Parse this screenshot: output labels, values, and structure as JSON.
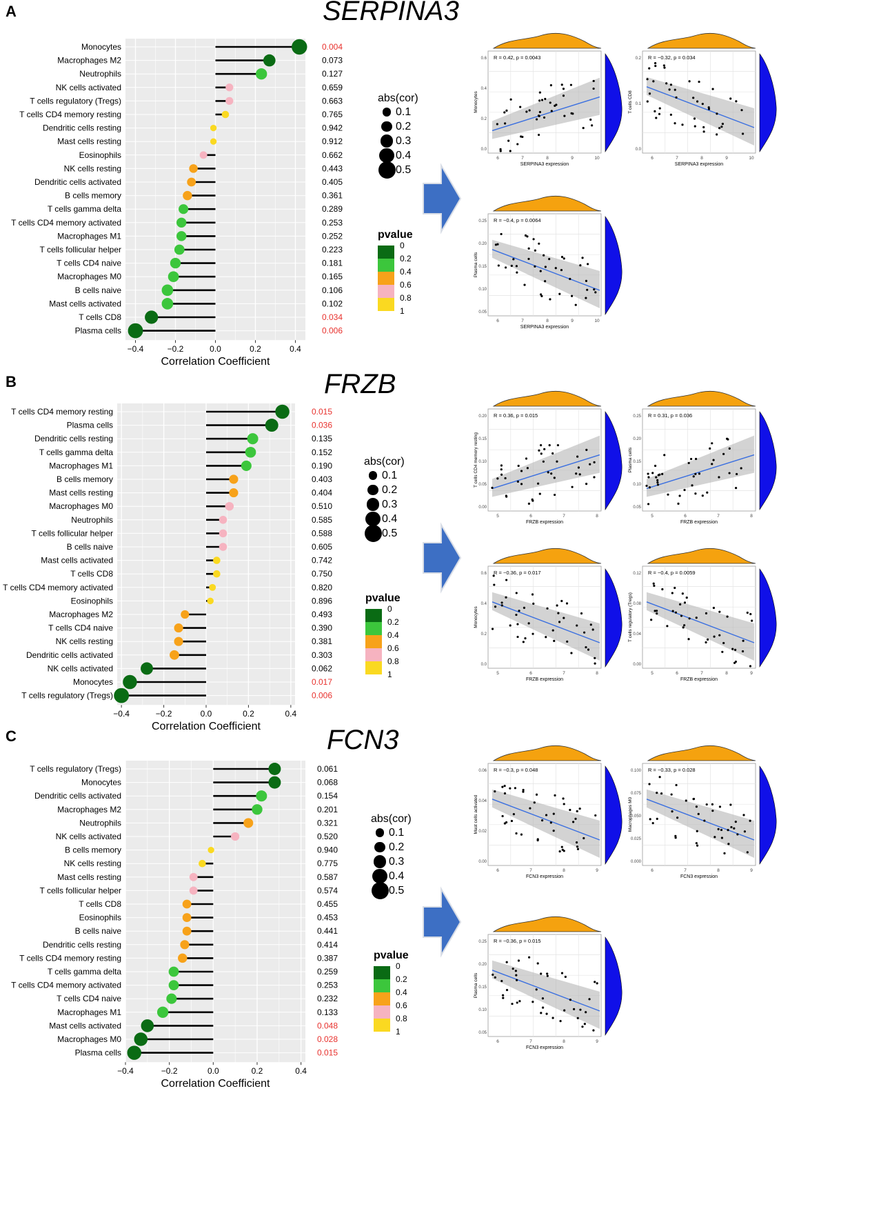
{
  "colors": {
    "p0": "#0a6b14",
    "p02": "#3cc63c",
    "p04": "#f7a21a",
    "p06": "#f6b3c0",
    "p08": "#fad921",
    "sig_red": "#e8312d",
    "density_orange": "#f5a20f",
    "density_blue": "#1010e8",
    "arrow_blue": "#3d6fc4",
    "panel_bg": "#ebebeb",
    "fit_line": "#3a6fe0"
  },
  "legend": {
    "size_title": "abs(cor)",
    "size_labels": [
      "0.1",
      "0.2",
      "0.3",
      "0.4",
      "0.5"
    ],
    "pvalue_title": "pvalue",
    "pvalue_labels": [
      "0",
      "0.2",
      "0.4",
      "0.6",
      "0.8",
      "1"
    ]
  },
  "panels": [
    {
      "letter": "A",
      "gene": "SERPINA3",
      "chart_data": {
        "type": "scatter",
        "title": "SERPINA3",
        "xlabel": "Correlation Coefficient",
        "xlim": [
          -0.45,
          0.45
        ],
        "x_ticks": [
          -0.4,
          -0.2,
          0.0,
          0.2,
          0.4
        ],
        "x_tick_labels": [
          "−0.4",
          "−0.2",
          "0.0",
          "0.2",
          "0.4"
        ],
        "rows": [
          {
            "cell": "Monocytes",
            "cor": 0.42,
            "pvalue": "0.004",
            "sig": true
          },
          {
            "cell": "Macrophages M2",
            "cor": 0.27,
            "pvalue": "0.073",
            "sig": false
          },
          {
            "cell": "Neutrophils",
            "cor": 0.23,
            "pvalue": "0.127",
            "sig": false
          },
          {
            "cell": "NK cells activated",
            "cor": 0.07,
            "pvalue": "0.659",
            "sig": false
          },
          {
            "cell": "T cells regulatory (Tregs)",
            "cor": 0.07,
            "pvalue": "0.663",
            "sig": false
          },
          {
            "cell": "T cells CD4 memory resting",
            "cor": 0.05,
            "pvalue": "0.765",
            "sig": false
          },
          {
            "cell": "Dendritic cells resting",
            "cor": -0.01,
            "pvalue": "0.942",
            "sig": false
          },
          {
            "cell": "Mast cells resting",
            "cor": -0.01,
            "pvalue": "0.912",
            "sig": false
          },
          {
            "cell": "Eosinophils",
            "cor": -0.06,
            "pvalue": "0.662",
            "sig": false
          },
          {
            "cell": "NK cells resting",
            "cor": -0.11,
            "pvalue": "0.443",
            "sig": false
          },
          {
            "cell": "Dendritic cells activated",
            "cor": -0.12,
            "pvalue": "0.405",
            "sig": false
          },
          {
            "cell": "B cells memory",
            "cor": -0.14,
            "pvalue": "0.361",
            "sig": false
          },
          {
            "cell": "T cells gamma delta",
            "cor": -0.16,
            "pvalue": "0.289",
            "sig": false
          },
          {
            "cell": "T cells CD4 memory activated",
            "cor": -0.17,
            "pvalue": "0.253",
            "sig": false
          },
          {
            "cell": "Macrophages M1",
            "cor": -0.17,
            "pvalue": "0.252",
            "sig": false
          },
          {
            "cell": "T cells follicular helper",
            "cor": -0.18,
            "pvalue": "0.223",
            "sig": false
          },
          {
            "cell": "T cells CD4 naive",
            "cor": -0.2,
            "pvalue": "0.181",
            "sig": false
          },
          {
            "cell": "Macrophages M0",
            "cor": -0.21,
            "pvalue": "0.165",
            "sig": false
          },
          {
            "cell": "B cells naive",
            "cor": -0.24,
            "pvalue": "0.106",
            "sig": false
          },
          {
            "cell": "Mast cells activated",
            "cor": -0.24,
            "pvalue": "0.102",
            "sig": false
          },
          {
            "cell": "T cells CD8",
            "cor": -0.32,
            "pvalue": "0.034",
            "sig": true
          },
          {
            "cell": "Plasma cells",
            "cor": -0.4,
            "pvalue": "0.006",
            "sig": true
          }
        ]
      },
      "scatters": [
        {
          "stat": "R = 0.42, p = 0.0043",
          "ylabel": "Monocytes",
          "xlabel": "SERPINA3 expression",
          "x_ticks": [
            "6",
            "7",
            "8",
            "9",
            "10"
          ],
          "y_ticks": [
            "0.0",
            "0.2",
            "0.4",
            "0.6"
          ],
          "slope": 1
        },
        {
          "stat": "R = −0.32, p = 0.034",
          "ylabel": "T cells CD8",
          "xlabel": "SERPINA3 expression",
          "x_ticks": [
            "6",
            "7",
            "8",
            "9",
            "10"
          ],
          "y_ticks": [
            "0.0",
            "0.1",
            "0.2"
          ],
          "slope": -1
        },
        {
          "stat": "R = −0.4, p = 0.0064",
          "ylabel": "Plasma cells",
          "xlabel": "SERPINA3 expression",
          "x_ticks": [
            "6",
            "7",
            "8",
            "9",
            "10"
          ],
          "y_ticks": [
            "0.05",
            "0.10",
            "0.15",
            "0.20",
            "0.25"
          ],
          "slope": -1
        }
      ]
    },
    {
      "letter": "B",
      "gene": "FRZB",
      "chart_data": {
        "type": "scatter",
        "title": "FRZB",
        "xlabel": "Correlation Coefficient",
        "xlim": [
          -0.42,
          0.42
        ],
        "x_ticks": [
          -0.4,
          -0.2,
          0.0,
          0.2,
          0.4
        ],
        "x_tick_labels": [
          "−0.4",
          "−0.2",
          "0.0",
          "0.2",
          "0.4"
        ],
        "rows": [
          {
            "cell": "T cells CD4 memory resting",
            "cor": 0.36,
            "pvalue": "0.015",
            "sig": true
          },
          {
            "cell": "Plasma cells",
            "cor": 0.31,
            "pvalue": "0.036",
            "sig": true
          },
          {
            "cell": "Dendritic cells resting",
            "cor": 0.22,
            "pvalue": "0.135",
            "sig": false
          },
          {
            "cell": "T cells gamma delta",
            "cor": 0.21,
            "pvalue": "0.152",
            "sig": false
          },
          {
            "cell": "Macrophages M1",
            "cor": 0.19,
            "pvalue": "0.190",
            "sig": false
          },
          {
            "cell": "B cells memory",
            "cor": 0.13,
            "pvalue": "0.403",
            "sig": false
          },
          {
            "cell": "Mast cells resting",
            "cor": 0.13,
            "pvalue": "0.404",
            "sig": false
          },
          {
            "cell": "Macrophages M0",
            "cor": 0.11,
            "pvalue": "0.510",
            "sig": false
          },
          {
            "cell": "Neutrophils",
            "cor": 0.08,
            "pvalue": "0.585",
            "sig": false
          },
          {
            "cell": "T cells follicular helper",
            "cor": 0.08,
            "pvalue": "0.588",
            "sig": false
          },
          {
            "cell": "B cells naive",
            "cor": 0.08,
            "pvalue": "0.605",
            "sig": false
          },
          {
            "cell": "Mast cells activated",
            "cor": 0.05,
            "pvalue": "0.742",
            "sig": false
          },
          {
            "cell": "T cells CD8",
            "cor": 0.05,
            "pvalue": "0.750",
            "sig": false
          },
          {
            "cell": "T cells CD4 memory activated",
            "cor": 0.03,
            "pvalue": "0.820",
            "sig": false
          },
          {
            "cell": "Eosinophils",
            "cor": 0.02,
            "pvalue": "0.896",
            "sig": false
          },
          {
            "cell": "Macrophages M2",
            "cor": -0.1,
            "pvalue": "0.493",
            "sig": false
          },
          {
            "cell": "T cells CD4 naive",
            "cor": -0.13,
            "pvalue": "0.390",
            "sig": false
          },
          {
            "cell": "NK cells resting",
            "cor": -0.13,
            "pvalue": "0.381",
            "sig": false
          },
          {
            "cell": "Dendritic cells activated",
            "cor": -0.15,
            "pvalue": "0.303",
            "sig": false
          },
          {
            "cell": "NK cells activated",
            "cor": -0.28,
            "pvalue": "0.062",
            "sig": false
          },
          {
            "cell": "Monocytes",
            "cor": -0.36,
            "pvalue": "0.017",
            "sig": true
          },
          {
            "cell": "T cells regulatory (Tregs)",
            "cor": -0.4,
            "pvalue": "0.006",
            "sig": true
          }
        ]
      },
      "scatters": [
        {
          "stat": "R = 0.36, p = 0.015",
          "ylabel": "T cells CD4 memory resting",
          "xlabel": "FRZB expression",
          "x_ticks": [
            "5",
            "6",
            "7",
            "8"
          ],
          "y_ticks": [
            "0.00",
            "0.05",
            "0.10",
            "0.15",
            "0.20"
          ],
          "slope": 1
        },
        {
          "stat": "R = 0.31, p = 0.036",
          "ylabel": "Plasma cells",
          "xlabel": "FRZB expression",
          "x_ticks": [
            "5",
            "6",
            "7",
            "8"
          ],
          "y_ticks": [
            "0.05",
            "0.10",
            "0.15",
            "0.20",
            "0.25"
          ],
          "slope": 1
        },
        {
          "stat": "R = −0.36, p = 0.017",
          "ylabel": "Monocytes",
          "xlabel": "FRZB expression",
          "x_ticks": [
            "5",
            "6",
            "7",
            "8"
          ],
          "y_ticks": [
            "0.0",
            "0.2",
            "0.4",
            "0.6"
          ],
          "slope": -1
        },
        {
          "stat": "R = −0.4, p = 0.0059",
          "ylabel": "T cells regulatory (Tregs)",
          "xlabel": "FRZB expression",
          "x_ticks": [
            "5",
            "6",
            "7",
            "8",
            "9"
          ],
          "y_ticks": [
            "0.00",
            "0.04",
            "0.08",
            "0.12"
          ],
          "slope": -1
        }
      ]
    },
    {
      "letter": "C",
      "gene": "FCN3",
      "chart_data": {
        "type": "scatter",
        "title": "FCN3",
        "xlabel": "Correlation Coefficient",
        "xlim": [
          -0.4,
          0.42
        ],
        "x_ticks": [
          -0.4,
          -0.2,
          0.0,
          0.2,
          0.4
        ],
        "x_tick_labels": [
          "−0.4",
          "−0.2",
          "0.0",
          "0.2",
          "0.4"
        ],
        "rows": [
          {
            "cell": "T cells regulatory (Tregs)",
            "cor": 0.28,
            "pvalue": "0.061",
            "sig": false
          },
          {
            "cell": "Monocytes",
            "cor": 0.28,
            "pvalue": "0.068",
            "sig": false
          },
          {
            "cell": "Dendritic cells activated",
            "cor": 0.22,
            "pvalue": "0.154",
            "sig": false
          },
          {
            "cell": "Macrophages M2",
            "cor": 0.2,
            "pvalue": "0.201",
            "sig": false
          },
          {
            "cell": "Neutrophils",
            "cor": 0.16,
            "pvalue": "0.321",
            "sig": false
          },
          {
            "cell": "NK cells activated",
            "cor": 0.1,
            "pvalue": "0.520",
            "sig": false
          },
          {
            "cell": "B cells memory",
            "cor": -0.01,
            "pvalue": "0.940",
            "sig": false
          },
          {
            "cell": "NK cells resting",
            "cor": -0.05,
            "pvalue": "0.775",
            "sig": false
          },
          {
            "cell": "Mast cells resting",
            "cor": -0.09,
            "pvalue": "0.587",
            "sig": false
          },
          {
            "cell": "T cells follicular helper",
            "cor": -0.09,
            "pvalue": "0.574",
            "sig": false
          },
          {
            "cell": "T cells CD8",
            "cor": -0.12,
            "pvalue": "0.455",
            "sig": false
          },
          {
            "cell": "Eosinophils",
            "cor": -0.12,
            "pvalue": "0.453",
            "sig": false
          },
          {
            "cell": "B cells naive",
            "cor": -0.12,
            "pvalue": "0.441",
            "sig": false
          },
          {
            "cell": "Dendritic cells resting",
            "cor": -0.13,
            "pvalue": "0.414",
            "sig": false
          },
          {
            "cell": "T cells CD4 memory resting",
            "cor": -0.14,
            "pvalue": "0.387",
            "sig": false
          },
          {
            "cell": "T cells gamma delta",
            "cor": -0.18,
            "pvalue": "0.259",
            "sig": false
          },
          {
            "cell": "T cells CD4 memory activated",
            "cor": -0.18,
            "pvalue": "0.253",
            "sig": false
          },
          {
            "cell": "T cells CD4 naive",
            "cor": -0.19,
            "pvalue": "0.232",
            "sig": false
          },
          {
            "cell": "Macrophages M1",
            "cor": -0.23,
            "pvalue": "0.133",
            "sig": false
          },
          {
            "cell": "Mast cells activated",
            "cor": -0.3,
            "pvalue": "0.048",
            "sig": true
          },
          {
            "cell": "Macrophages M0",
            "cor": -0.33,
            "pvalue": "0.028",
            "sig": true
          },
          {
            "cell": "Plasma cells",
            "cor": -0.36,
            "pvalue": "0.015",
            "sig": true
          }
        ]
      },
      "scatters": [
        {
          "stat": "R = −0.3, p = 0.048",
          "ylabel": "Mast cells activated",
          "xlabel": "FCN3 expression",
          "x_ticks": [
            "6",
            "7",
            "8",
            "9"
          ],
          "y_ticks": [
            "0.00",
            "0.02",
            "0.04",
            "0.06"
          ],
          "slope": -1
        },
        {
          "stat": "R = −0.33, p = 0.028",
          "ylabel": "Macrophages M0",
          "xlabel": "FCN3 expression",
          "x_ticks": [
            "6",
            "7",
            "8",
            "9"
          ],
          "y_ticks": [
            "0.000",
            "0.025",
            "0.050",
            "0.075",
            "0.100"
          ],
          "slope": -1
        },
        {
          "stat": "R = −0.36, p = 0.015",
          "ylabel": "Plasma cells",
          "xlabel": "FCN3 expression",
          "x_ticks": [
            "6",
            "7",
            "8",
            "9"
          ],
          "y_ticks": [
            "0.05",
            "0.10",
            "0.15",
            "0.20",
            "0.25"
          ],
          "slope": -1
        }
      ]
    }
  ]
}
